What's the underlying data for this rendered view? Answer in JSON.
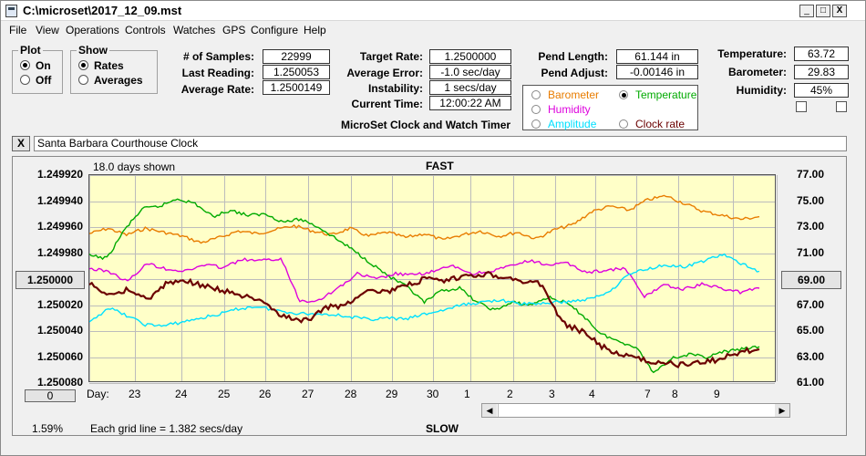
{
  "window": {
    "title": "C:\\microset\\2017_12_09.mst",
    "min": "_",
    "max": "□",
    "close": "X"
  },
  "menu": [
    "File",
    "View",
    "Operations",
    "Controls",
    "Watches",
    "GPS",
    "Configure",
    "Help"
  ],
  "plot_group": {
    "title": "Plot",
    "on": "On",
    "off": "Off"
  },
  "show_group": {
    "title": "Show",
    "rates": "Rates",
    "averages": "Averages"
  },
  "stats": {
    "samples_label": "# of Samples:",
    "samples": "22999",
    "last_label": "Last Reading:",
    "last": "1.250053",
    "avg_label": "Average Rate:",
    "avg": "1.2500149"
  },
  "target": {
    "rate_label": "Target Rate:",
    "rate": "1.2500000",
    "err_label": "Average Error:",
    "err": "-1.0 sec/day",
    "inst_label": "Instability:",
    "inst": "1 secs/day",
    "time_label": "Current Time:",
    "time": "12:00:22 AM"
  },
  "pend": {
    "len_label": "Pend Length:",
    "len": "61.144 in",
    "adj_label": "Pend Adjust:",
    "adj": "-0.00146 in"
  },
  "env": {
    "temp_label": "Temperature:",
    "temp": "63.72",
    "baro_label": "Barometer:",
    "baro": "29.83",
    "hum_label": "Humidity:",
    "hum": "45%"
  },
  "selector": {
    "barometer": "Barometer",
    "temperature": "Temperature",
    "humidity": "Humidity",
    "amplitude": "Amplitude",
    "clock_rate": "Clock rate"
  },
  "caption": "MicroSet Clock and Watch Timer",
  "clock_name": "Santa Barbara Courthouse Clock",
  "close_x": "X",
  "chart": {
    "days_shown": "18.0 days shown",
    "fast": "FAST",
    "slow": "SLOW",
    "left_btn": "1.250000",
    "right_btn": "69.00",
    "zero_btn": "0",
    "percent": "1.59%",
    "grid_note": "Each grid line = 1.382 secs/day",
    "day_label": "Day:"
  },
  "colors": {
    "barometer": "#e87c00",
    "temperature": "#00aa00",
    "humidity": "#dd00dd",
    "amplitude": "#00e0ff",
    "clock_rate": "#6b0000"
  },
  "chart_data": {
    "type": "line",
    "left_axis": {
      "ticks": [
        "1.249920",
        "1.249940",
        "1.249960",
        "1.249980",
        "1.250000",
        "1.250020",
        "1.250040",
        "1.250060",
        "1.250080"
      ],
      "ylim": [
        1.24992,
        1.25008
      ],
      "inverted": true
    },
    "right_axis": {
      "ticks": [
        "77.00",
        "75.00",
        "73.00",
        "71.00",
        "69.00",
        "67.00",
        "65.00",
        "63.00",
        "61.00"
      ],
      "ylim": [
        61,
        77
      ]
    },
    "x_labels": [
      "23",
      "24",
      "25",
      "26",
      "27",
      "28",
      "29",
      "30",
      "1",
      "2",
      "3",
      "4",
      "7",
      "8",
      "9"
    ],
    "grid": true,
    "series": [
      {
        "key": "barometer",
        "axis": "right",
        "values": [
          72.5,
          72.9,
          72.4,
          72.9,
          72.6,
          72.3,
          71.8,
          72.2,
          72.7,
          72.5,
          72.8,
          73.1,
          72.7,
          72.4,
          72.9,
          72.3,
          72.6,
          72.2,
          72.5,
          72.0,
          72.4,
          72.7,
          72.3,
          72.6,
          72.1,
          72.8,
          73.2,
          74.2,
          74.6,
          74.3,
          75.1,
          75.4,
          74.8,
          74.2,
          73.9,
          73.6,
          73.8
        ]
      },
      {
        "key": "temperature",
        "axis": "right",
        "values": [
          70.8,
          70.6,
          72.8,
          74.4,
          74.6,
          75.2,
          74.8,
          73.8,
          74.3,
          73.9,
          74.0,
          73.4,
          73.6,
          73.0,
          72.1,
          71.2,
          70.2,
          69.2,
          68.4,
          67.2,
          68.1,
          68.3,
          67.2,
          66.6,
          67.2,
          67.0,
          67.6,
          67.2,
          66.2,
          64.8,
          64.2,
          63.8,
          61.8,
          62.9,
          63.2,
          63.0,
          63.4,
          63.6,
          63.8
        ]
      },
      {
        "key": "humidity",
        "axis": "right",
        "values": [
          69.8,
          69.6,
          68.8,
          70.2,
          69.8,
          69.6,
          70.1,
          69.9,
          70.5,
          70.4,
          70.6,
          67.3,
          67.4,
          68.3,
          69.4,
          69.0,
          69.4,
          69.3,
          69.6,
          70.0,
          69.4,
          69.6,
          70.0,
          70.4,
          70.1,
          70.2,
          69.5,
          69.7,
          69.8,
          67.6,
          68.6,
          68.2,
          68.6,
          68.3,
          68.0,
          68.3
        ]
      },
      {
        "key": "amplitude",
        "axis": "right",
        "values": [
          65.6,
          66.8,
          66.2,
          65.5,
          65.4,
          65.7,
          66.0,
          66.3,
          66.7,
          66.9,
          66.6,
          66.4,
          66.3,
          66.3,
          66.1,
          65.9,
          66.0,
          65.9,
          66.3,
          66.6,
          67.0,
          67.2,
          67.4,
          67.1,
          67.1,
          67.2,
          67.3,
          67.5,
          68.1,
          69.4,
          69.8,
          70.1,
          69.9,
          70.4,
          70.9,
          70.2,
          69.6
        ]
      },
      {
        "key": "clock_rate",
        "axis": "left",
        "values": [
          1.250004,
          1.250012,
          1.250008,
          1.250016,
          1.250002,
          1.250002,
          1.250006,
          1.25001,
          1.250014,
          1.25002,
          1.25003,
          1.250032,
          1.250022,
          1.25002,
          1.250008,
          1.25001,
          1.250006,
          1.25,
          1.250002,
          1.249998,
          1.249996,
          1.249998,
          1.250002,
          1.250004,
          1.250034,
          1.25004,
          1.250052,
          1.250058,
          1.250062,
          1.250064,
          1.250066,
          1.250064,
          1.250062,
          1.250056,
          1.250054
        ]
      }
    ]
  }
}
